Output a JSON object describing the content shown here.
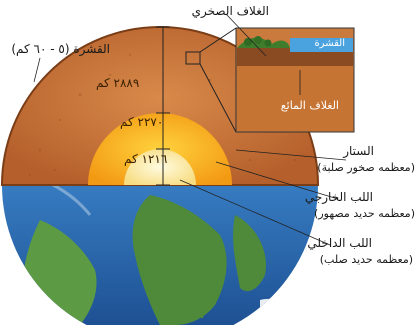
{
  "labels": {
    "crust": "القشرة (٥ - ٦٠ كم)",
    "lithosphere": "الغلاف الصخري",
    "inset_crust": "القشرة",
    "asthenosphere": "الغلاف المائع",
    "mantle_title": "الستار",
    "mantle_note": "(معظمه صخور صلبة)",
    "outer_core_title": "اللب الخارجي",
    "outer_core_note": "(معظمه حديد مصهور)",
    "inner_core_title": "اللب الداخلي",
    "inner_core_note": "(معظمه حديد صلب)"
  },
  "depths": {
    "mantle": "٢٨٨٩ كم",
    "outer_core": "٢٢٧٠ كم",
    "inner_core": "١٢١٦ كم"
  },
  "colors": {
    "mantle": "#c8733a",
    "outer_core": "#f6a81c",
    "inner_core": "#fbeaa0",
    "ocean": "#2f6fb5",
    "land": "#4f8a3a"
  }
}
